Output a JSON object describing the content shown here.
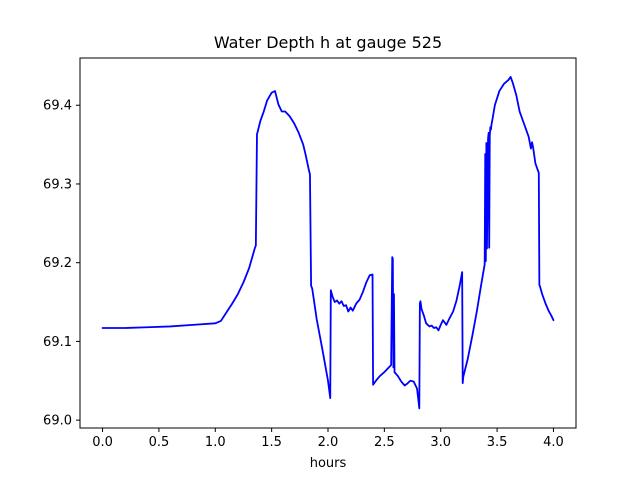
{
  "chart_data": {
    "type": "line",
    "title": "Water Depth h at gauge 525",
    "xlabel": "hours",
    "ylabel": "",
    "xlim": [
      -0.2,
      4.2
    ],
    "ylim": [
      68.99,
      69.46
    ],
    "grid": false,
    "x_ticks": [
      0.0,
      0.5,
      1.0,
      1.5,
      2.0,
      2.5,
      3.0,
      3.5,
      4.0
    ],
    "x_tick_labels": [
      "0.0",
      "0.5",
      "1.0",
      "1.5",
      "2.0",
      "2.5",
      "3.0",
      "3.5",
      "4.0"
    ],
    "y_ticks": [
      69.0,
      69.1,
      69.2,
      69.3,
      69.4
    ],
    "y_tick_labels": [
      "69.0",
      "69.1",
      "69.2",
      "69.3",
      "69.4"
    ],
    "series": [
      {
        "color": "#0000ff",
        "x": [
          0.0,
          0.2,
          0.4,
          0.6,
          0.8,
          1.0,
          1.05,
          1.1,
          1.15,
          1.2,
          1.25,
          1.3,
          1.35,
          1.36,
          1.37,
          1.4,
          1.43,
          1.46,
          1.5,
          1.53,
          1.56,
          1.59,
          1.62,
          1.66,
          1.7,
          1.74,
          1.78,
          1.8,
          1.83,
          1.84,
          1.85,
          1.86,
          1.9,
          1.95,
          2.0,
          2.02,
          2.025,
          2.04,
          2.06,
          2.08,
          2.1,
          2.12,
          2.14,
          2.16,
          2.18,
          2.2,
          2.22,
          2.25,
          2.28,
          2.31,
          2.34,
          2.37,
          2.395,
          2.4,
          2.43,
          2.46,
          2.5,
          2.54,
          2.56,
          2.57,
          2.575,
          2.58,
          2.585,
          2.59,
          2.62,
          2.65,
          2.68,
          2.7,
          2.73,
          2.76,
          2.79,
          2.81,
          2.815,
          2.82,
          2.83,
          2.85,
          2.87,
          2.9,
          2.92,
          2.94,
          2.96,
          2.98,
          3.0,
          3.02,
          3.05,
          3.08,
          3.11,
          3.14,
          3.17,
          3.19,
          3.195,
          3.2,
          3.24,
          3.28,
          3.32,
          3.36,
          3.39,
          3.395,
          3.4,
          3.405,
          3.41,
          3.42,
          3.425,
          3.43,
          3.435,
          3.44,
          3.445,
          3.45,
          3.46,
          3.48,
          3.52,
          3.56,
          3.6,
          3.62,
          3.64,
          3.67,
          3.7,
          3.74,
          3.78,
          3.8,
          3.81,
          3.82,
          3.84,
          3.86,
          3.87,
          3.875,
          3.88,
          3.9,
          3.93,
          3.96,
          3.98,
          4.0
        ],
        "y": [
          69.117,
          69.117,
          69.118,
          69.119,
          69.121,
          69.123,
          69.126,
          69.137,
          69.148,
          69.16,
          69.175,
          69.193,
          69.218,
          69.222,
          69.363,
          69.38,
          69.392,
          69.406,
          69.416,
          69.418,
          69.401,
          69.392,
          69.392,
          69.386,
          69.377,
          69.365,
          69.35,
          69.338,
          69.318,
          69.312,
          69.171,
          69.167,
          69.128,
          69.09,
          69.05,
          69.028,
          69.165,
          69.157,
          69.15,
          69.152,
          69.148,
          69.151,
          69.145,
          69.146,
          69.138,
          69.143,
          69.139,
          69.148,
          69.153,
          69.163,
          69.175,
          69.184,
          69.185,
          69.045,
          69.051,
          69.056,
          69.061,
          69.067,
          69.07,
          69.207,
          69.205,
          69.067,
          69.16,
          69.061,
          69.056,
          69.049,
          69.044,
          69.046,
          69.05,
          69.049,
          69.04,
          69.015,
          69.148,
          69.151,
          69.141,
          69.133,
          69.123,
          69.119,
          69.12,
          69.117,
          69.118,
          69.114,
          69.121,
          69.127,
          69.121,
          69.13,
          69.138,
          69.152,
          69.172,
          69.188,
          69.047,
          69.055,
          69.078,
          69.107,
          69.138,
          69.173,
          69.198,
          69.338,
          69.202,
          69.352,
          69.218,
          69.358,
          69.365,
          69.219,
          69.361,
          69.372,
          69.369,
          69.375,
          69.383,
          69.4,
          69.418,
          69.427,
          69.432,
          69.436,
          69.428,
          69.413,
          69.392,
          69.376,
          69.36,
          69.345,
          69.353,
          69.346,
          69.326,
          69.318,
          69.314,
          69.172,
          69.17,
          69.16,
          69.148,
          69.138,
          69.133,
          69.127
        ]
      }
    ]
  }
}
